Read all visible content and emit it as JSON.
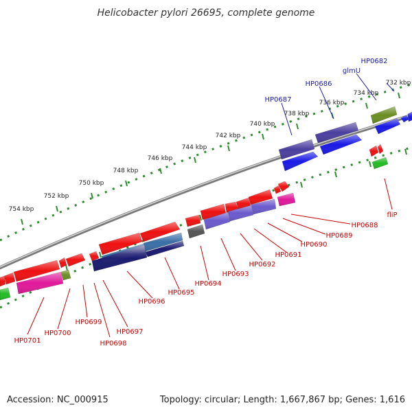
{
  "title": "Helicobacter pylori 26695, complete genome",
  "footer": {
    "accession": "Accession: NC_000915",
    "summary": "Topology: circular; Length: 1,667,867 bp; Genes: 1,616"
  },
  "ticks": [
    "732 kbp",
    "734 kbp",
    "736 kbp",
    "738 kbp",
    "740 kbp",
    "742 kbp",
    "744 kbp",
    "746 kbp",
    "748 kbp",
    "750 kbp",
    "752 kbp",
    "754 kbp"
  ],
  "labels_top": [
    "HP0682",
    "glmU",
    "HP0686",
    "HP0687"
  ],
  "labels_bottom": [
    "fliP",
    "HP0688",
    "HP0689",
    "HP0690",
    "HP0691",
    "HP0692",
    "HP0693",
    "HP0694",
    "HP0695",
    "HP0696",
    "HP0697",
    "HP0698",
    "HP0699",
    "HP0700",
    "HP0701"
  ],
  "colors": {
    "blue": "#1a1ae6",
    "darkblue": "#191970",
    "slateblue": "#4b3f9e",
    "red": "#ee1111",
    "magenta": "#e0199a",
    "olive": "#6b8e23",
    "green": "#22bb22",
    "gray": "#555555",
    "purple": "#6a5acd",
    "steelblue": "#3a6ea5"
  }
}
